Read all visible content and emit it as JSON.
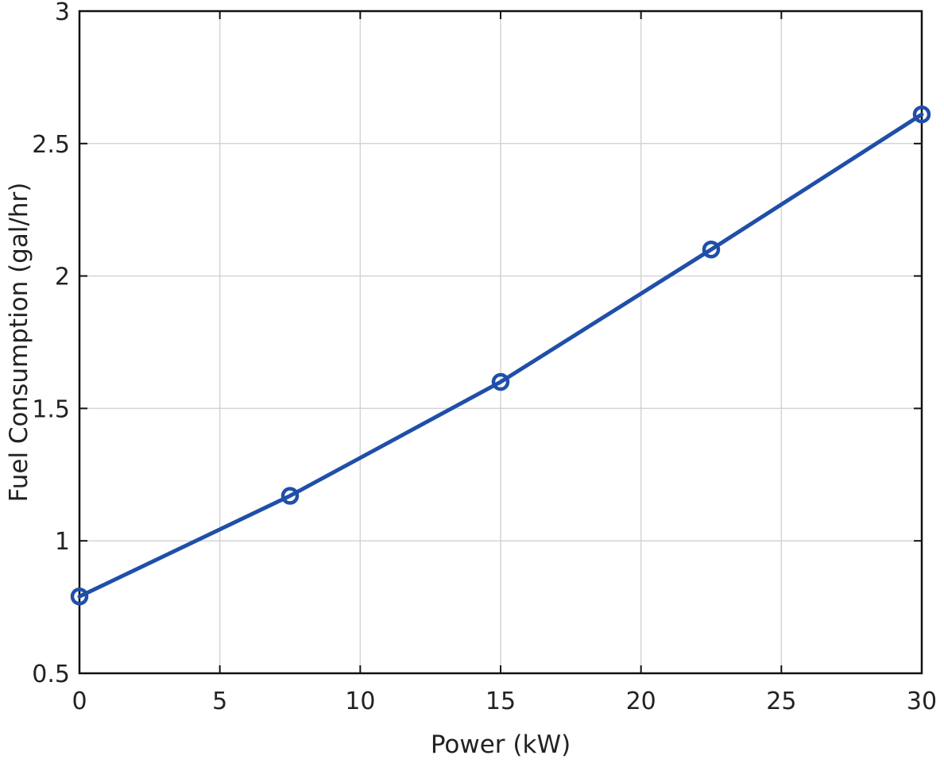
{
  "chart_data": {
    "type": "line",
    "title": "",
    "xlabel": "Power (kW)",
    "ylabel": "Fuel Consumption (gal/hr)",
    "xlim": [
      0,
      30
    ],
    "ylim": [
      0.5,
      3
    ],
    "xticks": [
      0,
      5,
      10,
      15,
      20,
      25,
      30
    ],
    "xtick_labels": [
      "0",
      "5",
      "10",
      "15",
      "20",
      "25",
      "30"
    ],
    "yticks": [
      0.5,
      1,
      1.5,
      2,
      2.5,
      3
    ],
    "ytick_labels": [
      "0.5",
      "1",
      "1.5",
      "2",
      "2.5",
      "3"
    ],
    "grid": true,
    "legend": "none",
    "series": [
      {
        "color": "#1f4fa8",
        "marker": "circle",
        "x": [
          0,
          7.5,
          15,
          22.5,
          30
        ],
        "y": [
          0.79,
          1.17,
          1.6,
          2.1,
          2.61
        ]
      }
    ]
  }
}
